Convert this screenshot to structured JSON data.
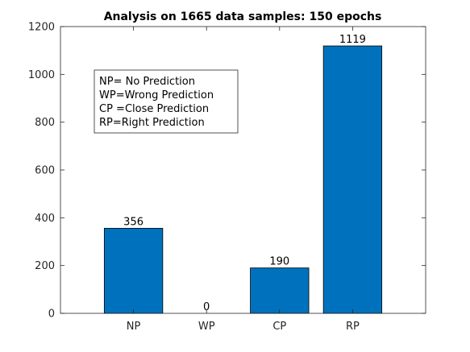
{
  "chart_data": {
    "type": "bar",
    "title": "Analysis on 1665 data samples: 150 epochs",
    "xlabel": "",
    "ylabel": "",
    "categories": [
      "NP",
      "WP",
      "CP",
      "RP"
    ],
    "values": [
      356,
      0,
      190,
      1119
    ],
    "data_labels": [
      "356",
      "0",
      "190",
      "1119"
    ],
    "ylim": [
      0,
      1200
    ],
    "yticks": [
      0,
      200,
      400,
      600,
      800,
      1000,
      1200
    ],
    "ytick_labels": [
      "0",
      "200",
      "400",
      "600",
      "800",
      "1000",
      "1200"
    ],
    "grid": false,
    "bar_color": "#0072bd",
    "annotation": {
      "placement": "top-left",
      "lines": [
        "NP= No Prediction",
        "WP=Wrong Prediction",
        "CP =Close Prediction",
        "RP=Right Prediction"
      ]
    }
  }
}
